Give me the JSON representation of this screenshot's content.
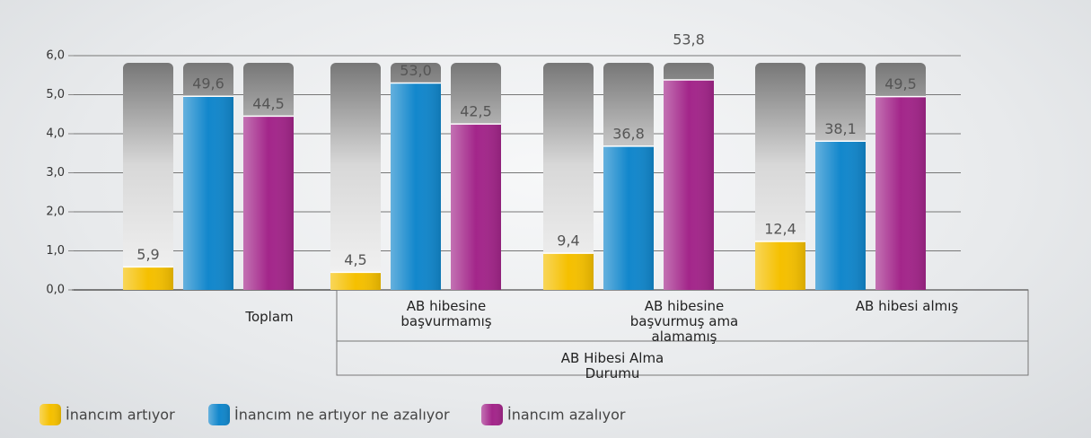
{
  "chart_data": {
    "type": "bar",
    "categories": [
      "Toplam",
      "AB hibesine başvurmamış",
      "AB hibesine başvurmuş ama alamamış",
      "AB hibesi almış"
    ],
    "group_label": "AB Hibesi Alma Durumu",
    "series": [
      {
        "name": "İnancım artıyor",
        "color": "#f5c000",
        "values": [
          0.59,
          0.45,
          0.94,
          1.24
        ],
        "value_labels": [
          "5,9",
          "4,5",
          "9,4",
          "12,4"
        ]
      },
      {
        "name": "İnancım ne artıyor ne azalıyor",
        "color": "#1287cc",
        "values": [
          4.96,
          5.3,
          3.68,
          3.81
        ],
        "value_labels": [
          "49,6",
          "53,0",
          "36,8",
          "38,1"
        ]
      },
      {
        "name": "İnancım azalıyor",
        "color": "#a3268a",
        "values": [
          4.45,
          4.25,
          5.38,
          4.95
        ],
        "value_labels": [
          "44,5",
          "42,5",
          "53,8",
          "49,5"
        ]
      }
    ],
    "ylim": [
      0,
      6
    ],
    "yticks": [
      {
        "value": 0,
        "label": "0,0"
      },
      {
        "value": 1,
        "label": "1,0"
      },
      {
        "value": 2,
        "label": "2,0"
      },
      {
        "value": 3,
        "label": "3,0"
      },
      {
        "value": 4,
        "label": "4,0"
      },
      {
        "value": 5,
        "label": "5,0"
      },
      {
        "value": 6,
        "label": "6,0"
      }
    ],
    "grid": true
  }
}
